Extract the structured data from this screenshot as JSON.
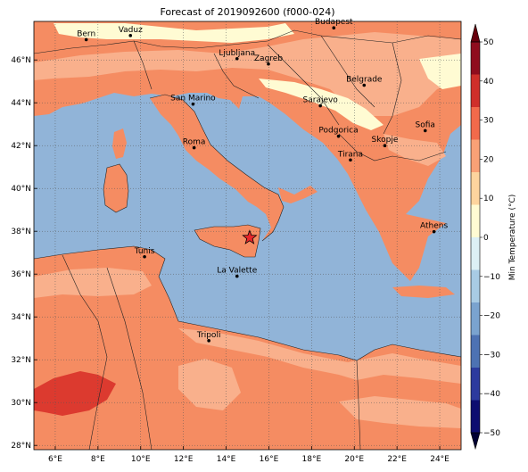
{
  "title": "Forecast of 2019092600 (f000-024)",
  "colors": {
    "sea": "#91b4d8",
    "land_base": "#f58c62",
    "land_mid": "#f9b08c",
    "land_cool": "#fde7bd",
    "land_cold": "#fffbd3",
    "land_warm": "#dc3a2f",
    "border": "#222222"
  },
  "axis": {
    "lon_ticks": [
      "6°E",
      "8°E",
      "10°E",
      "12°E",
      "14°E",
      "16°E",
      "18°E",
      "20°E",
      "22°E",
      "24°E"
    ],
    "lat_ticks": [
      "28°N",
      "30°N",
      "32°N",
      "34°N",
      "36°N",
      "38°N",
      "40°N",
      "42°N",
      "44°N",
      "46°N"
    ],
    "lon_range": [
      5,
      25
    ],
    "lat_range": [
      27.8,
      47.8
    ]
  },
  "cities": [
    {
      "name": "Bern",
      "lon": 7.45,
      "lat": 46.95
    },
    {
      "name": "Vaduz",
      "lon": 9.52,
      "lat": 47.14
    },
    {
      "name": "Budapest",
      "lon": 19.04,
      "lat": 47.5
    },
    {
      "name": "Ljubljana",
      "lon": 14.51,
      "lat": 46.06
    },
    {
      "name": "Zagreb",
      "lon": 15.98,
      "lat": 45.81
    },
    {
      "name": "Belgrade",
      "lon": 20.46,
      "lat": 44.82
    },
    {
      "name": "San Marino",
      "lon": 12.45,
      "lat": 43.94
    },
    {
      "name": "Sarajevo",
      "lon": 18.41,
      "lat": 43.86
    },
    {
      "name": "Sofia",
      "lon": 23.32,
      "lat": 42.7
    },
    {
      "name": "Roma",
      "lon": 12.5,
      "lat": 41.9
    },
    {
      "name": "Podgorica",
      "lon": 19.26,
      "lat": 42.44
    },
    {
      "name": "Skopje",
      "lon": 21.43,
      "lat": 42.0
    },
    {
      "name": "Tirana",
      "lon": 19.82,
      "lat": 41.33
    },
    {
      "name": "Athens",
      "lon": 23.73,
      "lat": 37.98
    },
    {
      "name": "Tunis",
      "lon": 10.18,
      "lat": 36.81
    },
    {
      "name": "La Valette",
      "lon": 14.51,
      "lat": 35.9
    },
    {
      "name": "Tripoli",
      "lon": 13.19,
      "lat": 32.89
    }
  ],
  "marker": {
    "name": "star-marker",
    "lon": 15.1,
    "lat": 37.7,
    "color": "#e8262a"
  },
  "colorbar": {
    "label": "Min Temperature (°C)",
    "ticks": [
      "50",
      "40",
      "30",
      "20",
      "10",
      "0",
      "−10",
      "−20",
      "−30",
      "−40",
      "−50"
    ],
    "range": [
      -50,
      50
    ],
    "colors": [
      "#0d0d70",
      "#2c3a9e",
      "#4d72b3",
      "#7aa3cf",
      "#a8cbe4",
      "#dcf0f5",
      "#fffbd3",
      "#fdd49e",
      "#f9a176",
      "#f26a4b",
      "#cf2f2a",
      "#8f0d1e"
    ]
  }
}
